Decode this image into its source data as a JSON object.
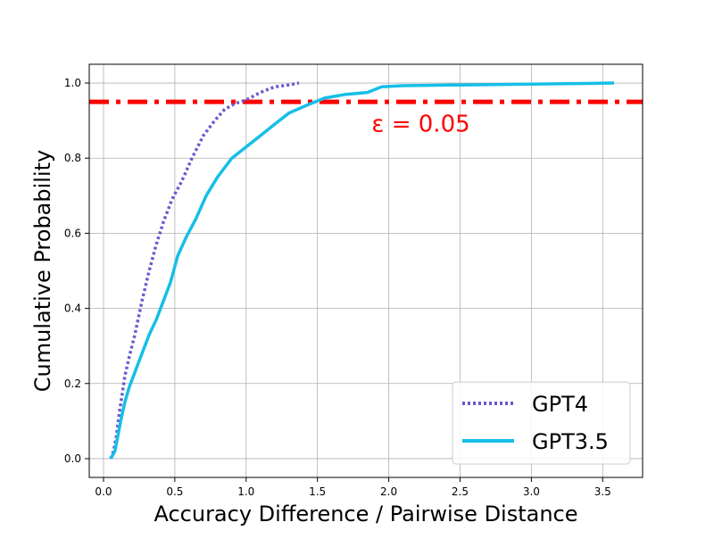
{
  "chart_data": {
    "type": "line",
    "title": "",
    "xlabel": "Accuracy Difference / Pairwise Distance",
    "ylabel": "Cumulative Probability",
    "xlim": [
      -0.1,
      3.78
    ],
    "ylim": [
      -0.05,
      1.05
    ],
    "xticks": [
      "0.0",
      "0.5",
      "1.0",
      "1.5",
      "2.0",
      "2.5",
      "3.0",
      "3.5"
    ],
    "yticks": [
      "0.0",
      "0.2",
      "0.4",
      "0.6",
      "0.8",
      "1.0"
    ],
    "grid": true,
    "legend_position": "lower-right",
    "series": [
      {
        "name": "GPT4",
        "style": "dotted",
        "color": "#6a5acd",
        "points": [
          [
            0.05,
            0.0
          ],
          [
            0.07,
            0.02
          ],
          [
            0.09,
            0.06
          ],
          [
            0.11,
            0.12
          ],
          [
            0.13,
            0.17
          ],
          [
            0.15,
            0.22
          ],
          [
            0.18,
            0.27
          ],
          [
            0.22,
            0.33
          ],
          [
            0.27,
            0.42
          ],
          [
            0.32,
            0.5
          ],
          [
            0.37,
            0.57
          ],
          [
            0.42,
            0.63
          ],
          [
            0.48,
            0.69
          ],
          [
            0.55,
            0.74
          ],
          [
            0.62,
            0.8
          ],
          [
            0.7,
            0.86
          ],
          [
            0.78,
            0.9
          ],
          [
            0.85,
            0.93
          ],
          [
            0.92,
            0.945
          ],
          [
            1.0,
            0.955
          ],
          [
            1.1,
            0.975
          ],
          [
            1.2,
            0.99
          ],
          [
            1.3,
            0.995
          ],
          [
            1.37,
            1.0
          ]
        ]
      },
      {
        "name": "GPT3.5",
        "style": "solid",
        "color": "#15bfe8",
        "points": [
          [
            0.05,
            0.0
          ],
          [
            0.08,
            0.02
          ],
          [
            0.1,
            0.06
          ],
          [
            0.12,
            0.1
          ],
          [
            0.15,
            0.15
          ],
          [
            0.18,
            0.19
          ],
          [
            0.22,
            0.23
          ],
          [
            0.27,
            0.28
          ],
          [
            0.32,
            0.33
          ],
          [
            0.37,
            0.37
          ],
          [
            0.42,
            0.42
          ],
          [
            0.47,
            0.47
          ],
          [
            0.52,
            0.54
          ],
          [
            0.58,
            0.59
          ],
          [
            0.65,
            0.64
          ],
          [
            0.72,
            0.7
          ],
          [
            0.8,
            0.75
          ],
          [
            0.9,
            0.8
          ],
          [
            1.0,
            0.83
          ],
          [
            1.1,
            0.86
          ],
          [
            1.2,
            0.89
          ],
          [
            1.3,
            0.92
          ],
          [
            1.42,
            0.94
          ],
          [
            1.55,
            0.96
          ],
          [
            1.7,
            0.97
          ],
          [
            1.85,
            0.975
          ],
          [
            1.95,
            0.99
          ],
          [
            2.1,
            0.993
          ],
          [
            2.5,
            0.995
          ],
          [
            3.0,
            0.997
          ],
          [
            3.4,
            0.999
          ],
          [
            3.58,
            1.0
          ]
        ]
      }
    ],
    "threshold": {
      "y": 0.95,
      "color": "#ff0000",
      "style": "dash-dot"
    },
    "annotation": {
      "text": "ε = 0.05",
      "x": 1.88,
      "y": 0.88,
      "color": "#ff0000"
    }
  }
}
